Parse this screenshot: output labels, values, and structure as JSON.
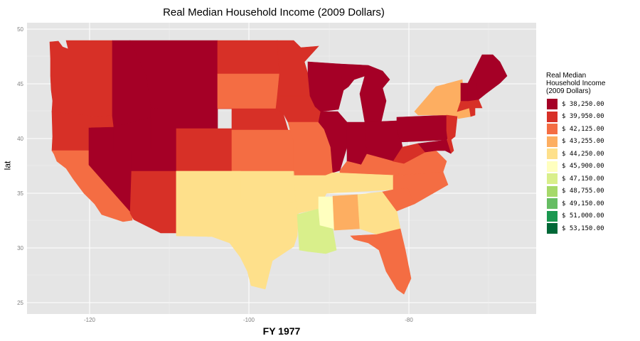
{
  "title": "Real Median Household Income (2009 Dollars)",
  "xlabel": "FY 1977",
  "ylabel": "lat",
  "yticks": [
    "50",
    "45",
    "40",
    "35",
    "30",
    "25"
  ],
  "xticks": [
    "-120",
    "-100",
    "-80"
  ],
  "legend": {
    "title_lines": [
      "Real Median",
      "Household Income",
      "(2009 Dollars)"
    ],
    "items": [
      {
        "label": "$ 38,250.00",
        "color": "#a50026"
      },
      {
        "label": "$ 39,950.00",
        "color": "#d73027"
      },
      {
        "label": "$ 42,125.00",
        "color": "#f46d43"
      },
      {
        "label": "$ 43,255.00",
        "color": "#fdae61"
      },
      {
        "label": "$ 44,250.00",
        "color": "#fee08b"
      },
      {
        "label": "$ 45,900.00",
        "color": "#ffffbf"
      },
      {
        "label": "$ 47,150.00",
        "color": "#d9ef8b"
      },
      {
        "label": "$ 48,755.00",
        "color": "#a6d96a"
      },
      {
        "label": "$ 49,150.00",
        "color": "#66bd63"
      },
      {
        "label": "$ 51,000.00",
        "color": "#1a9850"
      },
      {
        "label": "$ 53,150.00",
        "color": "#006837"
      }
    ]
  },
  "map": {
    "panel_background": "#e5e5e5",
    "gridline_color": "#ffffff",
    "states": [
      {
        "name": "WA",
        "color": "#d73027"
      },
      {
        "name": "OR",
        "color": "#d73027"
      },
      {
        "name": "CA",
        "color": "#f46d43"
      },
      {
        "name": "NV",
        "color": "#a50026"
      },
      {
        "name": "ID",
        "color": "#a50026"
      },
      {
        "name": "MT",
        "color": "#a50026"
      },
      {
        "name": "WY",
        "color": "#a50026"
      },
      {
        "name": "UT",
        "color": "#a50026"
      },
      {
        "name": "AZ",
        "color": "#d73027"
      },
      {
        "name": "CO",
        "color": "#d73027"
      },
      {
        "name": "NM",
        "color": "#fee08b"
      },
      {
        "name": "ND",
        "color": "#d73027"
      },
      {
        "name": "SD",
        "color": "#f46d43"
      },
      {
        "name": "NE",
        "color": "#d73027"
      },
      {
        "name": "KS",
        "color": "#f46d43"
      },
      {
        "name": "OK",
        "color": "#fee08b"
      },
      {
        "name": "TX",
        "color": "#fee08b"
      },
      {
        "name": "MN",
        "color": "#d73027"
      },
      {
        "name": "IA",
        "color": "#d73027"
      },
      {
        "name": "MO",
        "color": "#f46d43"
      },
      {
        "name": "AR",
        "color": "#fee08b"
      },
      {
        "name": "LA",
        "color": "#d9ef8b"
      },
      {
        "name": "WI",
        "color": "#a50026"
      },
      {
        "name": "IL",
        "color": "#a50026"
      },
      {
        "name": "MI",
        "color": "#a50026"
      },
      {
        "name": "IN",
        "color": "#a50026"
      },
      {
        "name": "OH",
        "color": "#a50026"
      },
      {
        "name": "KY",
        "color": "#f46d43"
      },
      {
        "name": "TN",
        "color": "#fee08b"
      },
      {
        "name": "MS",
        "color": "#ffffbf"
      },
      {
        "name": "AL",
        "color": "#fdae61"
      },
      {
        "name": "GA",
        "color": "#fee08b"
      },
      {
        "name": "FL",
        "color": "#f46d43"
      },
      {
        "name": "SC",
        "color": "#f46d43"
      },
      {
        "name": "NC",
        "color": "#f46d43"
      },
      {
        "name": "VA",
        "color": "#f46d43"
      },
      {
        "name": "WV",
        "color": "#d73027"
      },
      {
        "name": "PA",
        "color": "#a50026"
      },
      {
        "name": "NY",
        "color": "#fdae61"
      },
      {
        "name": "NJ",
        "color": "#d73027"
      },
      {
        "name": "DE",
        "color": "#d73027"
      },
      {
        "name": "MD",
        "color": "#a50026"
      },
      {
        "name": "CT",
        "color": "#fdae61"
      },
      {
        "name": "RI",
        "color": "#d73027"
      },
      {
        "name": "MA",
        "color": "#d73027"
      },
      {
        "name": "VT",
        "color": "#a50026"
      },
      {
        "name": "NH",
        "color": "#a50026"
      },
      {
        "name": "ME",
        "color": "#a50026"
      }
    ]
  }
}
